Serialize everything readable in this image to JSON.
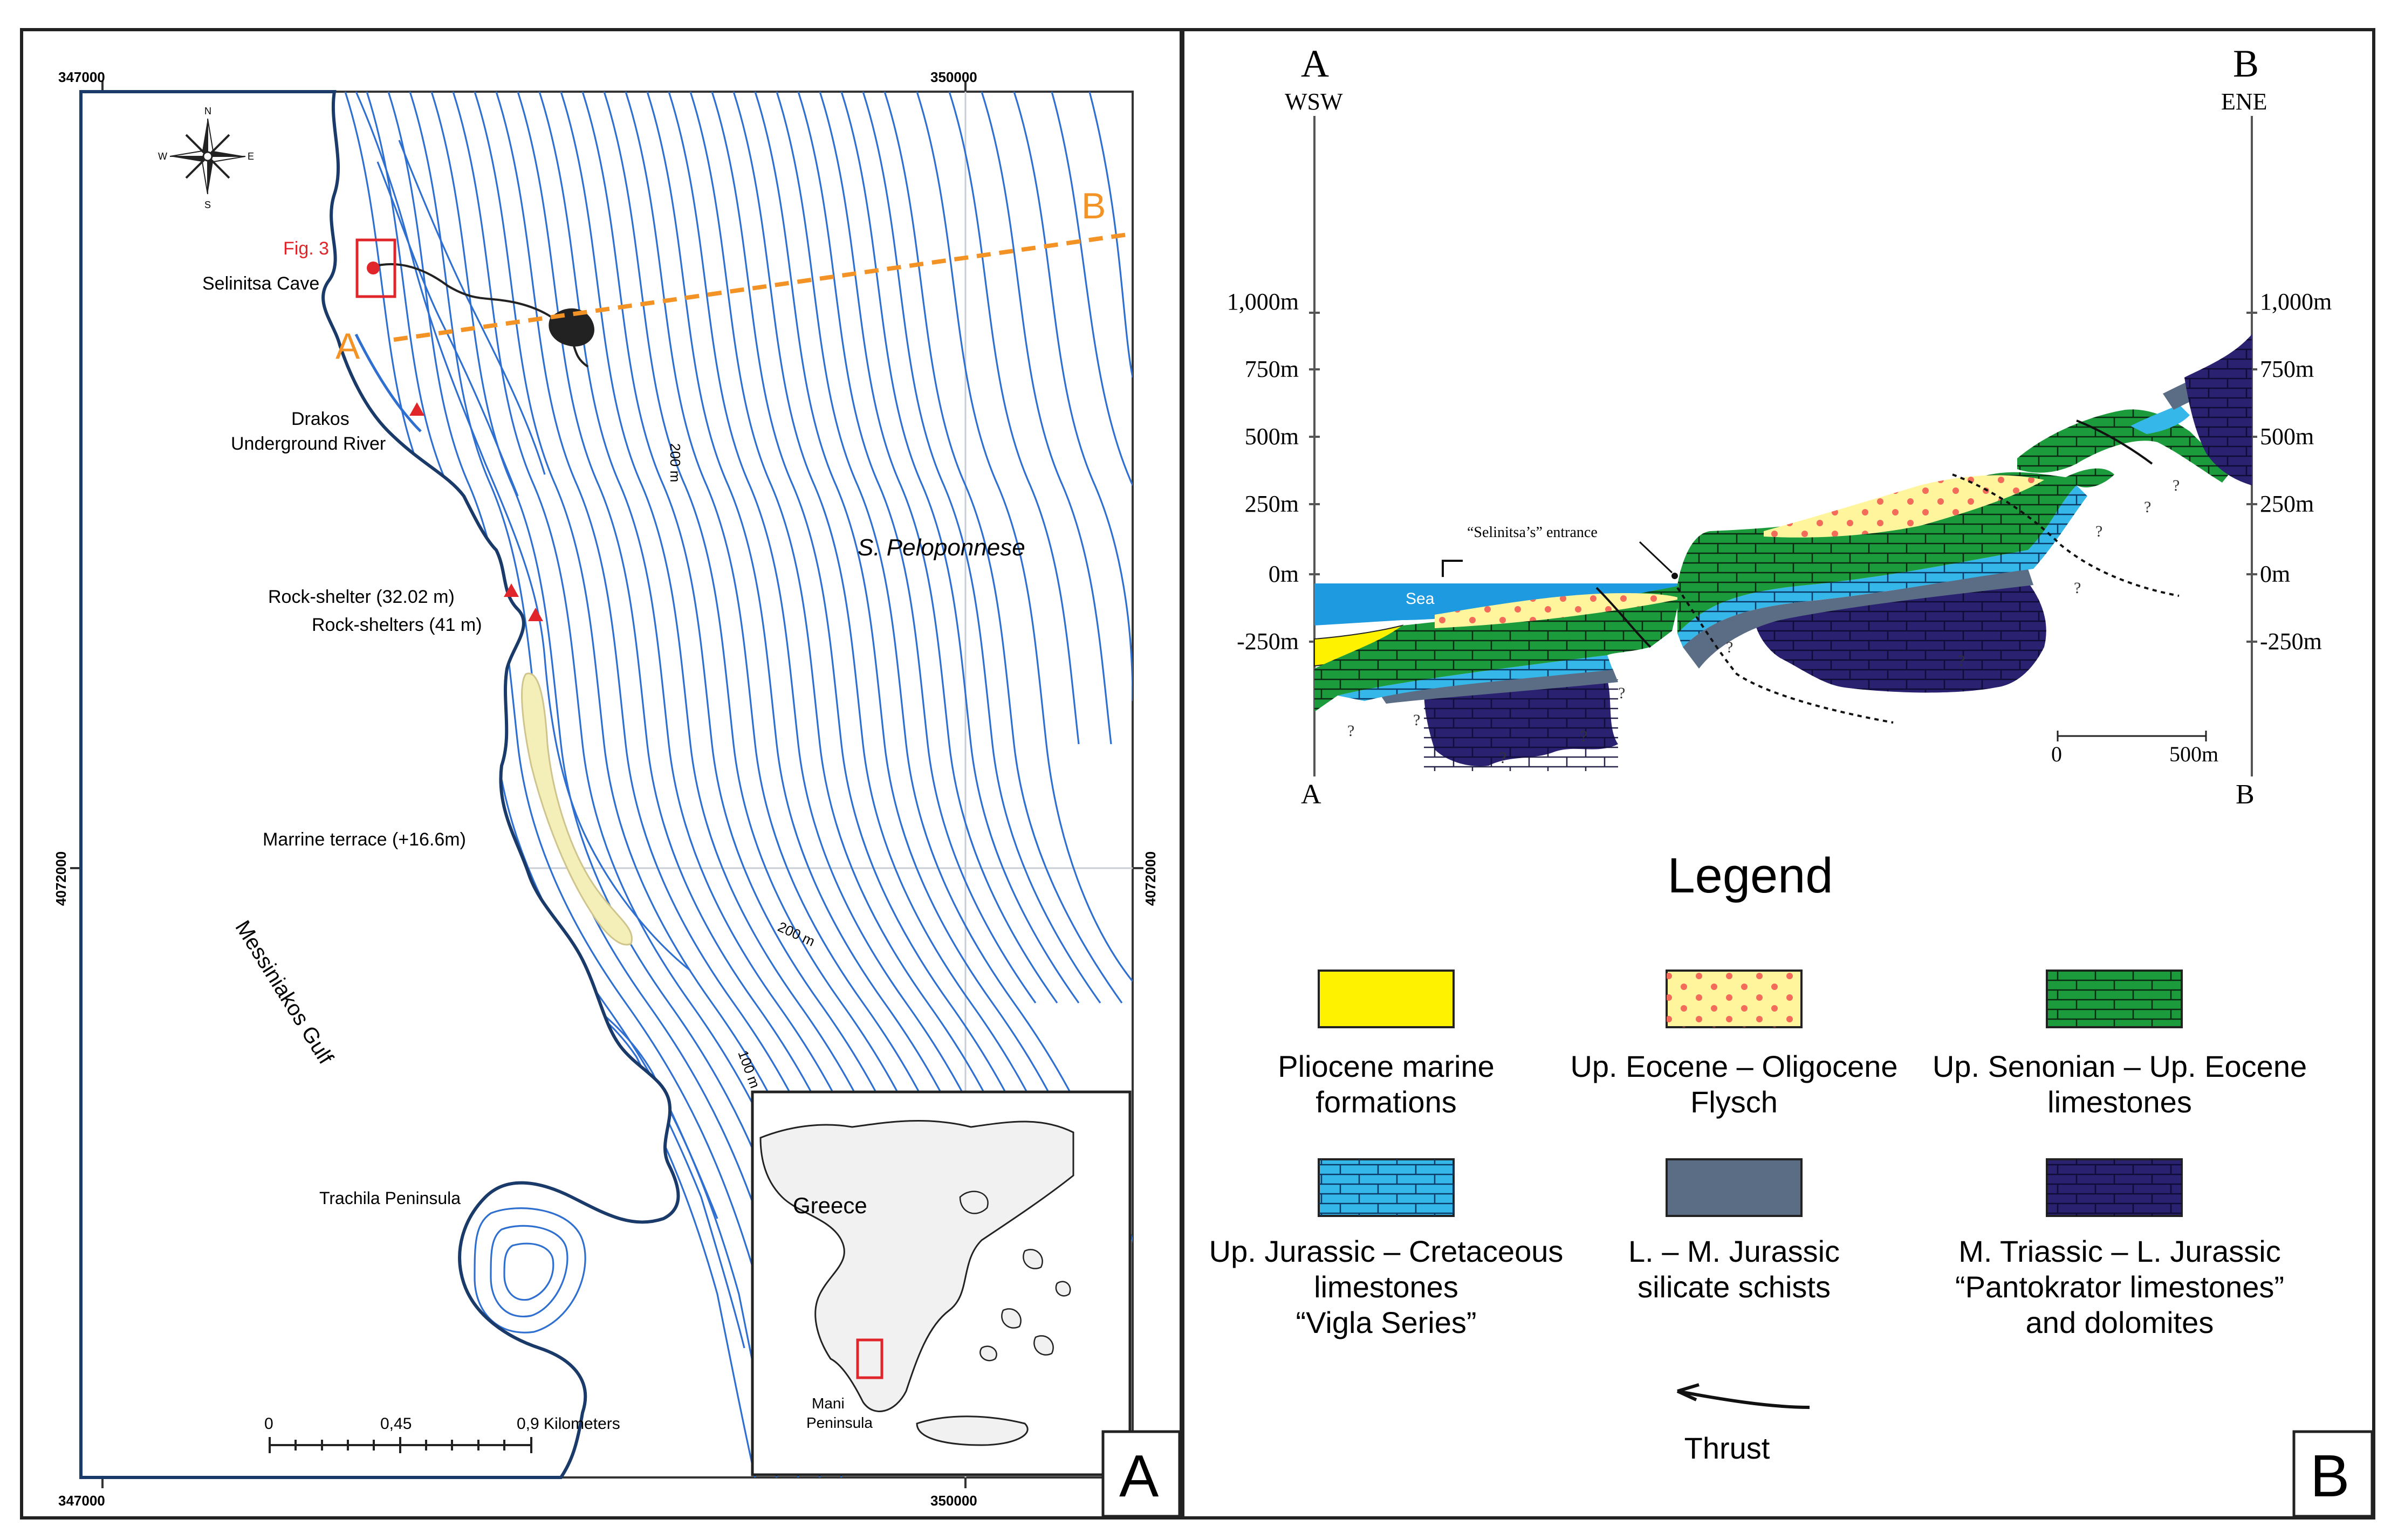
{
  "panelA": {
    "panel_letter": "A",
    "grid": {
      "x_top_left": "347000",
      "x_top_right": "350000",
      "x_bottom_left": "347000",
      "x_bottom_right": "350000",
      "y_left": "4072000",
      "y_right": "4072000"
    },
    "compass": {
      "n": "N",
      "s": "S",
      "e": "E",
      "w": "W"
    },
    "fig3_label": "Fig. 3",
    "section_label_a": "A",
    "section_label_b": "B",
    "places": {
      "selinitsa_cave": "Selinitsa Cave",
      "drakos_line1": "Drakos",
      "drakos_line2": "Underground River",
      "rock_shelter_1": "Rock-shelter (32.02 m)",
      "rock_shelters_2": "Rock-shelters (41 m)",
      "marine_terrace": "Marrine terrace (+16.6m)",
      "messiniakos": "Messiniakos Gulf",
      "trachila": "Trachila Peninsula",
      "s_peloponnese": "S. Peloponnese"
    },
    "contours": {
      "c200a": "200 m",
      "c200b": "200 m",
      "c100": "100 m"
    },
    "scale_bar": {
      "t0": "0",
      "t1": "0,45",
      "t2": "0,9 Kilometers"
    },
    "inset": {
      "greece": "Greece",
      "mani_line1": "Mani",
      "mani_line2": "Peninsula"
    },
    "colors": {
      "contour": "#2e6fd0",
      "coast": "#1a3a6a",
      "section": "#f39325",
      "marker": "#e0262a",
      "terrace": "#f4eeb8"
    }
  },
  "panelB": {
    "panel_letter": "B",
    "end_a": "A",
    "end_b": "B",
    "dir_a": "WSW",
    "dir_b": "ENE",
    "bottom_a": "A",
    "bottom_b": "B",
    "elev_left": [
      "1,000m",
      "750m",
      "500m",
      "250m",
      "0m",
      "-250m"
    ],
    "elev_right": [
      "1,000m",
      "750m",
      "500m",
      "250m",
      "0m",
      "-250m"
    ],
    "sea_label": "Sea",
    "entrance_label": "“Selinitsa’s” entrance",
    "question_mark": "?",
    "scale": {
      "t0": "0",
      "t1": "500m"
    },
    "legend_title": "Legend",
    "legend": [
      {
        "line1": "Pliocene marine",
        "line2": "formations",
        "line3": ""
      },
      {
        "line1": "Up. Eocene – Oligocene",
        "line2": "Flysch",
        "line3": ""
      },
      {
        "line1": "Up. Senonian – Up. Eocene",
        "line2": "limestones",
        "line3": ""
      },
      {
        "line1": "Up. Jurassic – Cretaceous",
        "line2": "limestones",
        "line3": "“Vigla Series”"
      },
      {
        "line1": "L. – M. Jurassic",
        "line2": "silicate schists",
        "line3": ""
      },
      {
        "line1": "M. Triassic – L. Jurassic",
        "line2": "“Pantokrator limestones”",
        "line3": "and dolomites"
      }
    ],
    "thrust_label": "Thrust",
    "colors": {
      "pliocene": "#fff200",
      "flysch": "#fff59d",
      "flysch_dot": "#f26b5b",
      "senonian": "#1c9b3c",
      "vigla": "#35b7ea",
      "schist": "#5a6d85",
      "pantokrator": "#2a2170",
      "sea": "#1e9be0"
    }
  }
}
